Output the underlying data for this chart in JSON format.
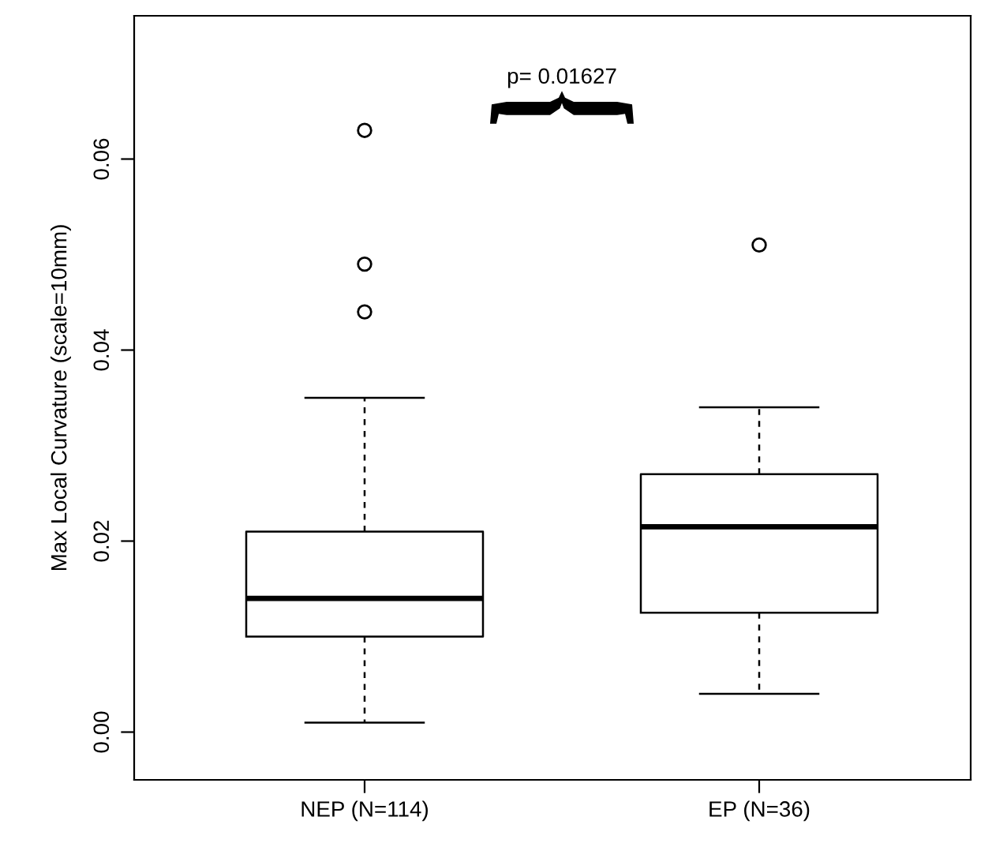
{
  "chart_data": {
    "type": "box",
    "ylabel": "Max Local Curvature (scale=10mm)",
    "categories": [
      "NEP (N=114)",
      "EP (N=36)"
    ],
    "boxes": [
      {
        "low": 0.001,
        "q1": 0.01,
        "median": 0.014,
        "q3": 0.021,
        "high": 0.035,
        "outliers": [
          0.044,
          0.049,
          0.063
        ]
      },
      {
        "low": 0.004,
        "q1": 0.0125,
        "median": 0.0215,
        "q3": 0.027,
        "high": 0.034,
        "outliers": [
          0.051
        ]
      }
    ],
    "ylim": [
      -0.005,
      0.075
    ],
    "yticks": [
      {
        "value": 0,
        "label": "0.00"
      },
      {
        "value": 0.02,
        "label": "0.02"
      },
      {
        "value": 0.04,
        "label": "0.04"
      },
      {
        "value": 0.06,
        "label": "0.06"
      }
    ],
    "annotations": [
      "p= 0.01627"
    ],
    "grid": false
  }
}
